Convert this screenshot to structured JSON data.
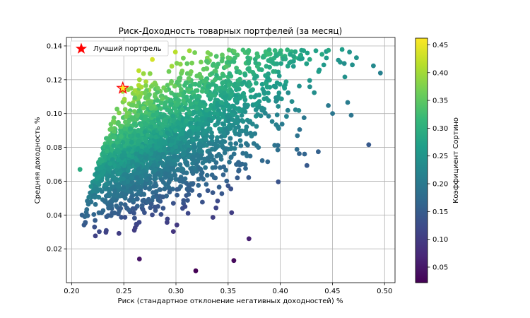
{
  "chart_data": {
    "type": "scatter",
    "title": "Риск-Доходность товарных портфелей (за месяц)",
    "xlabel": "Риск (стандартное отклонение негативных доходностей) %",
    "ylabel": "Средняя доходность %",
    "xlim": [
      0.195,
      0.51
    ],
    "ylim": [
      0.0,
      0.145
    ],
    "xticks": [
      0.2,
      0.25,
      0.3,
      0.35,
      0.4,
      0.45,
      0.5
    ],
    "xtick_labels": [
      "0.20",
      "0.25",
      "0.30",
      "0.35",
      "0.40",
      "0.45",
      "0.50"
    ],
    "yticks": [
      0.02,
      0.04,
      0.06,
      0.08,
      0.1,
      0.12,
      0.14
    ],
    "ytick_labels": [
      "0.02",
      "0.04",
      "0.06",
      "0.08",
      "0.10",
      "0.12",
      "0.14"
    ],
    "grid": true,
    "legend": {
      "placement": "top-left",
      "entries": [
        {
          "label": "Лучший портфель",
          "marker": "star",
          "color": "#ff0000"
        }
      ]
    },
    "colorbar": {
      "label": "Коэффициент Сортино",
      "colormap": "viridis",
      "range": [
        0.022,
        0.462
      ],
      "ticks": [
        0.05,
        0.1,
        0.15,
        0.2,
        0.25,
        0.3,
        0.35,
        0.4,
        0.45
      ],
      "tick_labels": [
        "0.05",
        "0.10",
        "0.15",
        "0.20",
        "0.25",
        "0.30",
        "0.35",
        "0.40",
        "0.45"
      ]
    },
    "best_portfolio": {
      "x": 0.249,
      "y": 0.115,
      "sortino": 0.462
    },
    "sample_points": [
      {
        "x": 0.496,
        "y": 0.124
      },
      {
        "x": 0.473,
        "y": 0.133
      },
      {
        "x": 0.468,
        "y": 0.099
      },
      {
        "x": 0.319,
        "y": 0.007
      },
      {
        "x": 0.318,
        "y": 0.136
      },
      {
        "x": 0.265,
        "y": 0.014
      },
      {
        "x": 0.37,
        "y": 0.026
      },
      {
        "x": 0.208,
        "y": 0.067
      },
      {
        "x": 0.21,
        "y": 0.04
      },
      {
        "x": 0.265,
        "y": 0.12
      },
      {
        "x": 0.44,
        "y": 0.135
      },
      {
        "x": 0.35,
        "y": 0.133
      }
    ],
    "n_points_approx": 2500
  }
}
